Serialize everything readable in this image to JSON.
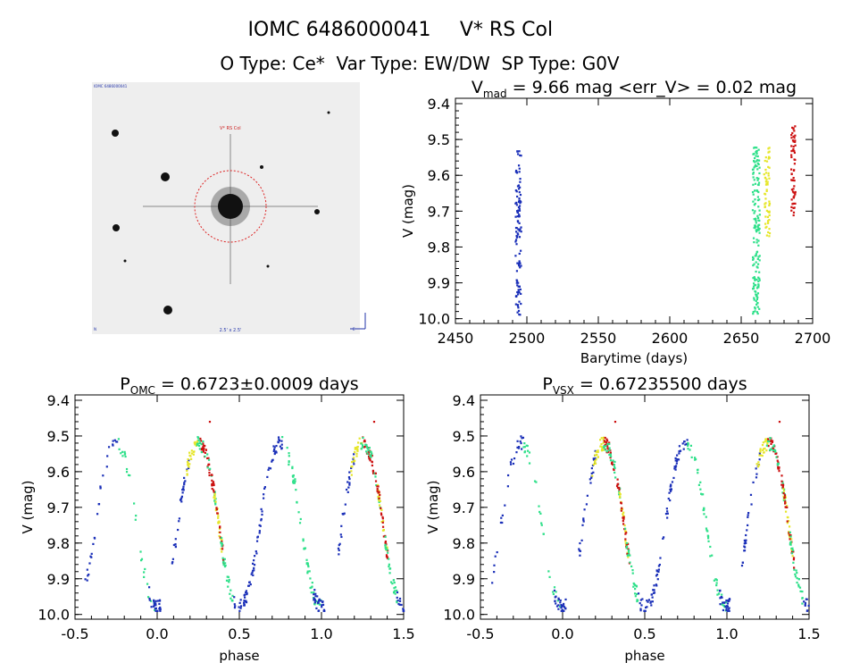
{
  "header": {
    "line1_left": "IOMC 6486000041",
    "line1_right": "V* RS Col",
    "line2": "O Type: Ce*  Var Type: EW/DW  SP Type: G0V"
  },
  "thumbnail": {
    "label_top_left": "IOMC 6486000041",
    "label_target": "V* RS Col",
    "label_bottom_center": "2.5' x 2.5'",
    "label_bottom_left": "N",
    "label_bottom_right": "E"
  },
  "colors": {
    "blue": "#1a2fb8",
    "teal": "#2fe08a",
    "yellow": "#e6e62a",
    "red": "#cc1111"
  },
  "chart_data": [
    {
      "id": "light-curve",
      "type": "scatter",
      "title_main": "V",
      "title_sub": "mad",
      "title_rest": " = 9.66 mag <err_V> = 0.02 mag",
      "xlabel": "Barytime (days)",
      "ylabel": "V (mag)",
      "xlim": [
        2450,
        2700
      ],
      "ylim": [
        10.0,
        9.4
      ],
      "y_inverted": true,
      "xticks": [
        2450,
        2500,
        2550,
        2600,
        2650,
        2700
      ],
      "yticks": [
        9.4,
        9.5,
        9.6,
        9.7,
        9.8,
        9.9,
        10.0
      ],
      "series": [
        {
          "color_key": "blue",
          "x_range": [
            2492,
            2496
          ],
          "y_range": [
            9.53,
            9.99
          ]
        },
        {
          "color_key": "teal",
          "x_range": [
            2658,
            2663
          ],
          "y_range": [
            9.52,
            9.99
          ]
        },
        {
          "color_key": "yellow",
          "x_range": [
            2666,
            2670
          ],
          "y_range": [
            9.52,
            9.77
          ]
        },
        {
          "color_key": "red",
          "x_range": [
            2685,
            2688
          ],
          "y_range": [
            9.46,
            9.72
          ]
        }
      ]
    },
    {
      "id": "phase-omc",
      "type": "scatter",
      "title_main": "P",
      "title_sub": "OMC",
      "title_rest": " = 0.6723±0.0009 days",
      "xlabel": "phase",
      "ylabel": "V (mag)",
      "xlim": [
        -0.5,
        1.5
      ],
      "ylim": [
        10.0,
        9.4
      ],
      "y_inverted": true,
      "xticks": [
        -0.5,
        0.0,
        0.5,
        1.0,
        1.5
      ],
      "yticks": [
        9.4,
        9.5,
        9.6,
        9.7,
        9.8,
        9.9,
        10.0
      ],
      "max_mag": 9.52,
      "min_mag": 9.98
    },
    {
      "id": "phase-vsx",
      "type": "scatter",
      "title_main": "P",
      "title_sub": "VSX",
      "title_rest": " = 0.67235500 days",
      "xlabel": "phase",
      "ylabel": "V (mag)",
      "xlim": [
        -0.5,
        1.5
      ],
      "ylim": [
        10.0,
        9.4
      ],
      "y_inverted": true,
      "xticks": [
        -0.5,
        0.0,
        0.5,
        1.0,
        1.5
      ],
      "yticks": [
        9.4,
        9.5,
        9.6,
        9.7,
        9.8,
        9.9,
        10.0
      ],
      "max_mag": 9.52,
      "min_mag": 9.98
    }
  ]
}
